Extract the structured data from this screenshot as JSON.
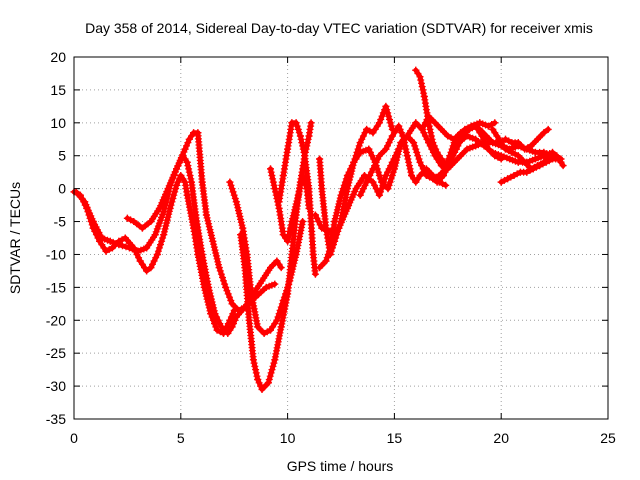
{
  "chart_data": {
    "type": "scatter",
    "title": "Day 358 of 2014, Sidereal Day-to-day VTEC variation (SDTVAR) for receiver xmis",
    "xlabel": "GPS time / hours",
    "ylabel": "SDTVAR / TECUs",
    "xlim": [
      0,
      25
    ],
    "ylim": [
      -35,
      20
    ],
    "xticks": [
      "0",
      "5",
      "10",
      "15",
      "20",
      "25"
    ],
    "yticks": [
      "20",
      "15",
      "10",
      "5",
      "0",
      "-5",
      "-10",
      "-15",
      "-20",
      "-25",
      "-30",
      "-35"
    ],
    "grid": true,
    "marker": "plus",
    "color": "#ff0000",
    "series": [
      {
        "points": [
          [
            0.1,
            -0.5
          ],
          [
            0.5,
            -2
          ],
          [
            0.9,
            -5
          ],
          [
            1.3,
            -7.5
          ],
          [
            1.7,
            -8
          ],
          [
            2.1,
            -8.5
          ],
          [
            2.6,
            -9
          ],
          [
            3,
            -9.5
          ],
          [
            3.4,
            -9
          ],
          [
            3.8,
            -7
          ],
          [
            4.2,
            -3.5
          ],
          [
            4.5,
            0.5
          ],
          [
            4.8,
            3
          ],
          [
            5.1,
            5
          ],
          [
            5.3,
            4
          ],
          [
            5.5,
            1
          ],
          [
            5.7,
            -4
          ],
          [
            6,
            -10
          ],
          [
            6.3,
            -15
          ],
          [
            6.6,
            -19
          ],
          [
            6.9,
            -21
          ],
          [
            7.2,
            -22
          ],
          [
            7.4,
            -21
          ],
          [
            7.6,
            -19.5
          ],
          [
            8,
            -18
          ],
          [
            8.4,
            -16
          ],
          [
            8.8,
            -14
          ],
          [
            9.2,
            -12
          ],
          [
            9.5,
            -11
          ],
          [
            9.7,
            -12
          ]
        ]
      },
      {
        "points": [
          [
            2.5,
            -4.5
          ],
          [
            2.8,
            -5
          ],
          [
            3.2,
            -6
          ],
          [
            3.6,
            -5
          ],
          [
            4,
            -3
          ],
          [
            4.4,
            0
          ],
          [
            4.8,
            3
          ],
          [
            5.2,
            6
          ],
          [
            5.4,
            7.5
          ],
          [
            5.6,
            8.5
          ],
          [
            5.8,
            8.5
          ],
          [
            6,
            1
          ],
          [
            6.2,
            -4
          ],
          [
            6.5,
            -8
          ],
          [
            6.8,
            -12
          ],
          [
            7.1,
            -15
          ],
          [
            7.4,
            -17.5
          ],
          [
            7.7,
            -18.5
          ],
          [
            8,
            -18
          ],
          [
            8.5,
            -16.5
          ],
          [
            9,
            -15
          ],
          [
            9.4,
            -14.5
          ]
        ]
      },
      {
        "points": [
          [
            0,
            -0.5
          ],
          [
            0.3,
            -1
          ],
          [
            0.6,
            -3
          ],
          [
            0.9,
            -6
          ],
          [
            1.2,
            -8
          ],
          [
            1.5,
            -9.5
          ],
          [
            1.8,
            -9
          ],
          [
            2.1,
            -8
          ],
          [
            2.4,
            -7.5
          ],
          [
            2.8,
            -9
          ],
          [
            3.1,
            -11
          ],
          [
            3.4,
            -12.5
          ],
          [
            3.6,
            -12
          ],
          [
            3.9,
            -10
          ],
          [
            4.2,
            -7
          ],
          [
            4.5,
            -3
          ],
          [
            4.8,
            0.5
          ],
          [
            5,
            2
          ],
          [
            5.2,
            1
          ],
          [
            5.3,
            -1
          ],
          [
            5.6,
            -6
          ],
          [
            5.8,
            -10
          ],
          [
            6.1,
            -15
          ],
          [
            6.4,
            -19
          ],
          [
            6.7,
            -21.5
          ],
          [
            7,
            -22
          ],
          [
            7.3,
            -20
          ],
          [
            7.5,
            -18.5
          ]
        ]
      },
      {
        "points": [
          [
            7.3,
            1
          ],
          [
            7.6,
            -2
          ],
          [
            7.9,
            -6
          ],
          [
            8.1,
            -10
          ],
          [
            8.3,
            -16
          ],
          [
            8.6,
            -21
          ],
          [
            8.9,
            -22
          ],
          [
            9.2,
            -21.5
          ],
          [
            9.5,
            -20
          ],
          [
            9.8,
            -17
          ],
          [
            10.1,
            -14
          ],
          [
            10.4,
            -10
          ],
          [
            10.7,
            -5
          ]
        ]
      },
      {
        "points": [
          [
            7.8,
            -7
          ],
          [
            8,
            -12
          ],
          [
            8.2,
            -20
          ],
          [
            8.4,
            -26
          ],
          [
            8.6,
            -29
          ],
          [
            8.8,
            -30.5
          ],
          [
            9.1,
            -29.5
          ],
          [
            9.4,
            -26
          ],
          [
            9.7,
            -21
          ],
          [
            10,
            -16
          ],
          [
            10.2,
            -10
          ],
          [
            10.4,
            -4
          ],
          [
            10.6,
            1
          ],
          [
            10.8,
            5
          ],
          [
            11,
            8
          ],
          [
            11.1,
            10
          ]
        ]
      },
      {
        "points": [
          [
            9.2,
            3
          ],
          [
            9.4,
            0
          ],
          [
            9.6,
            -3
          ],
          [
            9.8,
            -7
          ],
          [
            10,
            -8
          ],
          [
            10.2,
            -5
          ],
          [
            10.5,
            -1
          ],
          [
            10.7,
            2
          ],
          [
            10.9,
            0
          ],
          [
            11,
            -3
          ]
        ]
      },
      {
        "points": [
          [
            9.6,
            -2
          ],
          [
            9.8,
            2
          ],
          [
            10,
            6
          ],
          [
            10.2,
            10
          ],
          [
            10.4,
            10
          ],
          [
            10.6,
            8
          ],
          [
            10.8,
            5
          ],
          [
            11,
            0
          ],
          [
            11.1,
            -5
          ],
          [
            11.2,
            -10
          ],
          [
            11.3,
            -13
          ]
        ]
      },
      {
        "points": [
          [
            11.5,
            4.5
          ],
          [
            11.6,
            0
          ],
          [
            11.8,
            -6
          ],
          [
            12,
            -10
          ],
          [
            12.2,
            -8
          ],
          [
            12.5,
            -5
          ],
          [
            12.8,
            0
          ],
          [
            13.1,
            4
          ],
          [
            13.4,
            7
          ],
          [
            13.7,
            9
          ],
          [
            14,
            8.5
          ],
          [
            14.3,
            10
          ],
          [
            14.6,
            12.5
          ],
          [
            14.9,
            9
          ]
        ]
      },
      {
        "points": [
          [
            11.5,
            -12
          ],
          [
            11.8,
            -11
          ],
          [
            12,
            -9
          ],
          [
            12.2,
            -5
          ],
          [
            12.5,
            -1
          ],
          [
            12.8,
            2
          ],
          [
            13.1,
            4
          ],
          [
            13.4,
            5.5
          ],
          [
            13.8,
            6
          ],
          [
            14.1,
            4
          ],
          [
            14.4,
            1
          ],
          [
            14.7,
            0
          ],
          [
            15,
            3
          ],
          [
            15.3,
            7
          ],
          [
            15.6,
            8
          ],
          [
            15.9,
            7
          ],
          [
            16.2,
            4
          ],
          [
            16.5,
            2
          ],
          [
            16.8,
            1.5
          ],
          [
            17.1,
            2
          ],
          [
            17.4,
            3
          ],
          [
            17.7,
            5.5
          ],
          [
            18,
            7
          ],
          [
            18.4,
            8
          ],
          [
            18.8,
            7.5
          ],
          [
            19.2,
            6.5
          ],
          [
            19.6,
            5.5
          ],
          [
            20,
            5
          ],
          [
            20.4,
            4.5
          ],
          [
            20.8,
            4
          ],
          [
            21.2,
            4
          ],
          [
            21.6,
            4.5
          ],
          [
            22,
            5
          ],
          [
            22.4,
            5.5
          ],
          [
            22.8,
            4
          ]
        ]
      },
      {
        "points": [
          [
            11.3,
            -4
          ],
          [
            11.6,
            -6
          ],
          [
            12,
            -6.5
          ],
          [
            12.4,
            -6
          ],
          [
            12.8,
            -3
          ],
          [
            13.2,
            0
          ],
          [
            13.6,
            2
          ],
          [
            14,
            1
          ],
          [
            14.3,
            -1
          ],
          [
            14.6,
            2
          ],
          [
            14.9,
            4
          ],
          [
            15.2,
            6
          ],
          [
            15.6,
            8
          ],
          [
            16,
            10
          ],
          [
            16.3,
            9
          ],
          [
            16.6,
            7
          ],
          [
            16.9,
            5
          ],
          [
            17.2,
            3.5
          ],
          [
            17.5,
            3
          ],
          [
            17.8,
            4
          ],
          [
            18.1,
            5
          ],
          [
            18.4,
            6
          ],
          [
            18.8,
            6.5
          ],
          [
            19.2,
            7
          ],
          [
            19.6,
            7
          ],
          [
            20,
            6.5
          ],
          [
            20.4,
            6
          ],
          [
            20.8,
            6.5
          ],
          [
            21.2,
            6
          ],
          [
            21.6,
            5.5
          ],
          [
            22,
            5.5
          ],
          [
            22.4,
            5
          ],
          [
            22.8,
            4.5
          ]
        ]
      },
      {
        "points": [
          [
            13.4,
            -1
          ],
          [
            13.7,
            1
          ],
          [
            14,
            3
          ],
          [
            14.3,
            5
          ],
          [
            14.6,
            6
          ],
          [
            14.9,
            8
          ],
          [
            15.2,
            9.5
          ],
          [
            15.4,
            8
          ],
          [
            15.6,
            5
          ],
          [
            15.8,
            2
          ],
          [
            16,
            1
          ],
          [
            16.2,
            2
          ],
          [
            16.5,
            3
          ],
          [
            16.8,
            2
          ],
          [
            17.1,
            1
          ],
          [
            17.4,
            0.5
          ]
        ]
      },
      {
        "points": [
          [
            16,
            18
          ],
          [
            16.2,
            17
          ],
          [
            16.4,
            14
          ],
          [
            16.6,
            10
          ],
          [
            16.8,
            7
          ],
          [
            17,
            5.5
          ],
          [
            17.2,
            4.5
          ],
          [
            17.4,
            3.5
          ],
          [
            17.6,
            5
          ],
          [
            17.8,
            7
          ],
          [
            18,
            8
          ],
          [
            18.3,
            9
          ],
          [
            18.6,
            9.5
          ],
          [
            19,
            10
          ],
          [
            19.4,
            9.5
          ],
          [
            19.7,
            10
          ]
        ]
      },
      {
        "points": [
          [
            16.4,
            3
          ],
          [
            16.7,
            2
          ],
          [
            17,
            1
          ],
          [
            17.3,
            2
          ],
          [
            17.6,
            4
          ],
          [
            17.9,
            6
          ],
          [
            18.2,
            8
          ],
          [
            18.5,
            9
          ],
          [
            18.8,
            9.5
          ],
          [
            19.1,
            8
          ],
          [
            19.4,
            6
          ],
          [
            19.7,
            5
          ],
          [
            20,
            4.5
          ]
        ]
      },
      {
        "points": [
          [
            16.3,
            9
          ],
          [
            16.6,
            11
          ],
          [
            16.9,
            10
          ],
          [
            17.2,
            9
          ],
          [
            17.5,
            8
          ],
          [
            17.8,
            7.5
          ],
          [
            18.1,
            8.5
          ],
          [
            18.4,
            9
          ],
          [
            18.7,
            9.5
          ],
          [
            19,
            9
          ],
          [
            19.3,
            8
          ],
          [
            19.6,
            7
          ],
          [
            19.9,
            7
          ],
          [
            20.2,
            7.5
          ],
          [
            20.5,
            7
          ],
          [
            20.8,
            7
          ],
          [
            21.1,
            6
          ],
          [
            21.4,
            6.5
          ],
          [
            21.7,
            7.5
          ],
          [
            22,
            8.5
          ],
          [
            22.2,
            9
          ]
        ]
      },
      {
        "points": [
          [
            20,
            1
          ],
          [
            20.3,
            1.5
          ],
          [
            20.6,
            2
          ],
          [
            20.9,
            2.5
          ],
          [
            21.2,
            2.5
          ],
          [
            21.5,
            3
          ],
          [
            21.8,
            3.5
          ],
          [
            22.1,
            4
          ],
          [
            22.4,
            4.5
          ],
          [
            22.7,
            4.5
          ],
          [
            22.9,
            3.5
          ]
        ]
      },
      {
        "points": [
          [
            19.6,
            9
          ],
          [
            19.9,
            7.5
          ],
          [
            20.2,
            6
          ],
          [
            20.5,
            5.5
          ],
          [
            20.8,
            5
          ],
          [
            21.1,
            4
          ],
          [
            21.4,
            3
          ],
          [
            21.7,
            3.5
          ],
          [
            22,
            4
          ],
          [
            22.3,
            5
          ],
          [
            22.6,
            5
          ],
          [
            22.8,
            4
          ]
        ]
      }
    ]
  }
}
